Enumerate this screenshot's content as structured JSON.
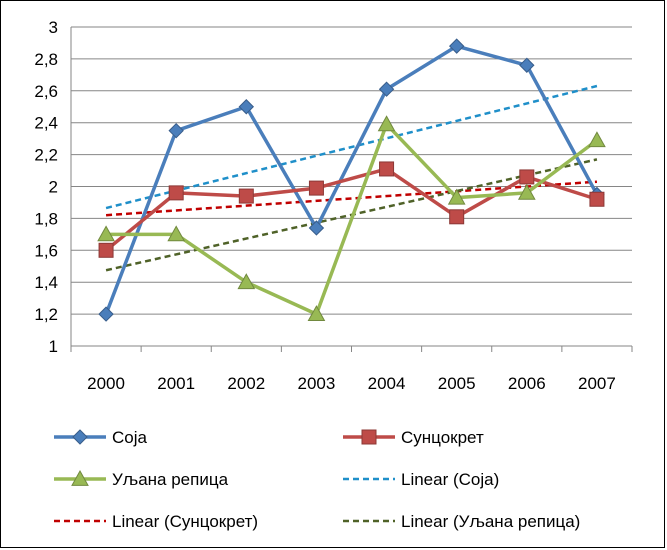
{
  "chart_data": {
    "type": "line",
    "title": "",
    "xlabel": "",
    "ylabel": "",
    "ylim": [
      1,
      3
    ],
    "yticks": [
      "1",
      "1,2",
      "1,4",
      "1,6",
      "1,8",
      "2",
      "2,2",
      "2,4",
      "2,6",
      "2,8",
      "3"
    ],
    "categories": [
      "2000",
      "2001",
      "2002",
      "2003",
      "2004",
      "2005",
      "2006",
      "2007"
    ],
    "grid": "horizontal",
    "legend_position": "bottom",
    "series": [
      {
        "name": "Соја",
        "marker": "diamond",
        "color": "#4a7ebb",
        "values": [
          1.2,
          2.35,
          2.5,
          1.74,
          2.61,
          2.88,
          2.76,
          1.95
        ]
      },
      {
        "name": "Сунцокрет",
        "marker": "square",
        "color": "#be4b48",
        "values": [
          1.6,
          1.96,
          1.94,
          1.99,
          2.11,
          1.81,
          2.06,
          1.92
        ]
      },
      {
        "name": "Уљана репица",
        "marker": "triangle",
        "color": "#98b954",
        "values": [
          1.7,
          1.7,
          1.4,
          1.2,
          2.39,
          1.93,
          1.96,
          2.29
        ]
      }
    ],
    "trendlines": [
      {
        "name": "Linear (Соја)",
        "color": "#1f8fc9",
        "values_start_end": [
          1.865,
          2.63
        ]
      },
      {
        "name": "Linear (Сунцокрет)",
        "color": "#c00000",
        "values_start_end": [
          1.82,
          2.03
        ]
      },
      {
        "name": "Linear (Уљана репица)",
        "color": "#4f6228",
        "values_start_end": [
          1.475,
          2.17
        ]
      }
    ]
  }
}
